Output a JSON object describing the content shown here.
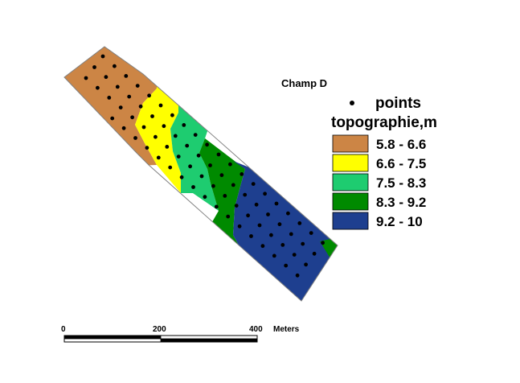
{
  "map": {
    "title": "Champ D"
  },
  "legend": {
    "points_label": "points",
    "layer_label": "topographie,m",
    "classes": [
      {
        "label": "5.8 - 6.6",
        "color": "#cc8545"
      },
      {
        "label": "6.6 - 7.5",
        "color": "#ffff00"
      },
      {
        "label": "7.5 - 8.3",
        "color": "#1ecc70"
      },
      {
        "label": "8.3 - 9.2",
        "color": "#008a00"
      },
      {
        "label": "9.2 - 10",
        "color": "#1e3f8f"
      }
    ]
  },
  "scale_bar": {
    "ticks": [
      "0",
      "200",
      "400"
    ],
    "unit": "Meters"
  },
  "colors": {
    "point": "#000000",
    "outline": "#808080"
  }
}
